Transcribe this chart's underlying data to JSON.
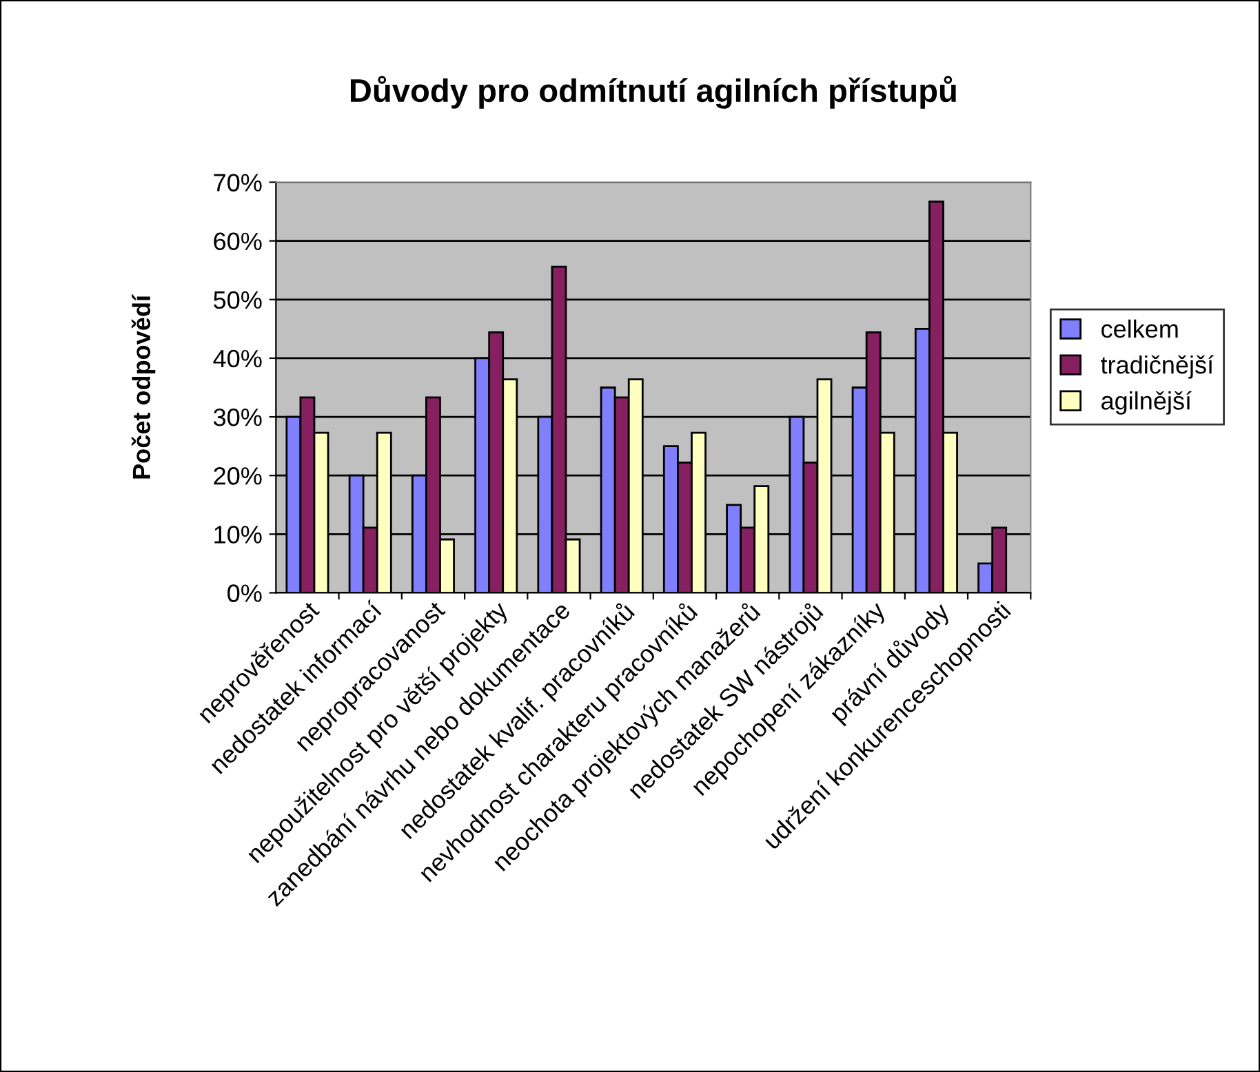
{
  "chart_data": {
    "type": "bar",
    "title": "Důvody pro odmítnutí agilních přístupů",
    "ylabel": "Počet odpovědí",
    "categories": [
      "neprověřenost",
      "nedostatek informací",
      "nepropracovanost",
      "nepoužitelnost pro větší projekty",
      "zanedbání návrhu nebo dokumentace",
      "nedostatek kvalif. pracovníků",
      "nevhodnost charakteru pracovníků",
      "neochota projektových manažerů",
      "nedostatek SW nástrojů",
      "nepochopení zákazníky",
      "právní důvody",
      "udržení konkurenceschopnosti"
    ],
    "series": [
      {
        "name": "celkem",
        "color": "#8080ff",
        "values": [
          30,
          20,
          20,
          40,
          30,
          35,
          25,
          15,
          30,
          35,
          45,
          5
        ]
      },
      {
        "name": "tradičnější",
        "color": "#862060",
        "values": [
          33.3,
          11.1,
          33.3,
          44.4,
          55.6,
          33.3,
          22.2,
          11.1,
          22.2,
          44.4,
          66.7,
          11.1
        ]
      },
      {
        "name": "agilnější",
        "color": "#ffffc0",
        "values": [
          27.3,
          27.3,
          9.1,
          36.4,
          9.1,
          36.4,
          27.3,
          18.2,
          36.4,
          27.3,
          27.3,
          null
        ]
      }
    ],
    "ylim": [
      0,
      70
    ],
    "yticks": [
      {
        "value": 0,
        "label": "0%"
      },
      {
        "value": 10,
        "label": "10%"
      },
      {
        "value": 20,
        "label": "20%"
      },
      {
        "value": 30,
        "label": "30%"
      },
      {
        "value": 40,
        "label": "40%"
      },
      {
        "value": 50,
        "label": "50%"
      },
      {
        "value": 60,
        "label": "60%"
      },
      {
        "value": 70,
        "label": "70%"
      }
    ],
    "grid": "y",
    "legend": "right"
  }
}
